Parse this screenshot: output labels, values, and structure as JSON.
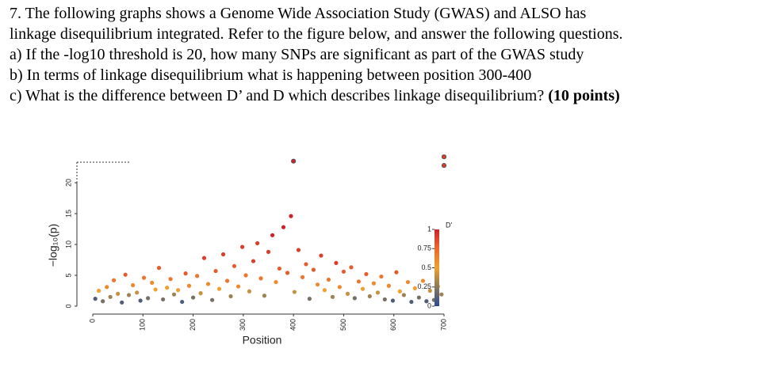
{
  "question": {
    "lines": [
      "7.  The following graphs shows a Genome Wide Association Study (GWAS) and ALSO has",
      "linkage disequilibrium integrated.  Refer to the figure below, and answer the following questions.",
      "a) If the -log10 threshold is 20, how many SNPs are significant as part of the GWAS study",
      "b) In terms of linkage disequilibrium what is happening between position 300-400",
      "c) What is the difference between D’ and D which describes linkage disequilibrium? "
    ],
    "points_label": "(10 points)"
  },
  "chart_data": {
    "type": "scatter",
    "x_label": "Position",
    "y_label": "−log₁₀(p)",
    "xlim": [
      0,
      700
    ],
    "ylim": [
      0,
      24.5
    ],
    "xticks": [
      0,
      100,
      200,
      300,
      400,
      500,
      600,
      700
    ],
    "yticks": [
      0,
      5,
      10,
      15,
      20
    ],
    "color_label": "D'",
    "color_ticks": [
      0,
      0.25,
      0.5,
      0.75,
      1
    ],
    "colorscale": [
      "#2a4a8e",
      "#8a7a5a",
      "#f0a030",
      "#ec6a2c",
      "#d0202a"
    ],
    "x": [
      5,
      12,
      20,
      28,
      35,
      42,
      50,
      58,
      65,
      72,
      80,
      88,
      95,
      102,
      110,
      118,
      125,
      132,
      140,
      148,
      155,
      162,
      170,
      178,
      185,
      192,
      200,
      208,
      215,
      222,
      230,
      238,
      245,
      252,
      260,
      268,
      275,
      282,
      290,
      298,
      305,
      312,
      320,
      328,
      335,
      342,
      350,
      358,
      365,
      372,
      380,
      388,
      395,
      402,
      410,
      418,
      425,
      432,
      440,
      448,
      455,
      462,
      470,
      478,
      485,
      492,
      500,
      508,
      515,
      522,
      530,
      538,
      545,
      552,
      560,
      568,
      575,
      582,
      590,
      598,
      605,
      612,
      620,
      628,
      635,
      642,
      650,
      658,
      665,
      672,
      680,
      688,
      695,
      400,
      700,
      700
    ],
    "y": [
      1.2,
      2.5,
      0.8,
      3.1,
      1.5,
      4.2,
      2.0,
      0.6,
      5.1,
      1.8,
      3.4,
      2.2,
      0.9,
      4.6,
      1.3,
      3.8,
      2.7,
      6.2,
      1.1,
      3.0,
      4.4,
      1.9,
      2.6,
      0.7,
      5.3,
      3.3,
      1.4,
      4.9,
      2.1,
      7.8,
      3.6,
      1.0,
      5.7,
      2.8,
      8.4,
      4.1,
      1.6,
      6.5,
      3.2,
      9.6,
      5.0,
      2.4,
      7.3,
      10.2,
      4.5,
      1.7,
      8.8,
      11.5,
      3.9,
      6.1,
      12.8,
      5.4,
      14.6,
      2.3,
      9.1,
      4.7,
      6.8,
      1.2,
      5.9,
      3.5,
      8.2,
      2.6,
      4.3,
      1.5,
      7.0,
      3.1,
      5.6,
      2.0,
      6.3,
      1.3,
      4.0,
      2.8,
      5.2,
      1.6,
      3.7,
      2.2,
      4.8,
      1.1,
      3.3,
      0.9,
      5.5,
      2.4,
      1.8,
      3.9,
      0.7,
      2.9,
      1.4,
      4.1,
      0.8,
      2.5,
      1.0,
      3.2,
      1.9,
      23.5,
      24.2,
      22.8
    ],
    "ld": [
      0.1,
      0.5,
      0.2,
      0.6,
      0.3,
      0.7,
      0.4,
      0.1,
      0.8,
      0.3,
      0.6,
      0.4,
      0.1,
      0.7,
      0.2,
      0.6,
      0.5,
      0.8,
      0.2,
      0.5,
      0.7,
      0.3,
      0.5,
      0.1,
      0.8,
      0.6,
      0.2,
      0.7,
      0.4,
      0.9,
      0.6,
      0.2,
      0.8,
      0.5,
      0.9,
      0.7,
      0.3,
      0.8,
      0.6,
      0.9,
      0.7,
      0.4,
      0.9,
      0.9,
      0.7,
      0.3,
      0.9,
      1.0,
      0.6,
      0.8,
      1.0,
      0.8,
      1.0,
      0.4,
      0.9,
      0.7,
      0.8,
      0.2,
      0.8,
      0.6,
      0.9,
      0.5,
      0.7,
      0.3,
      0.9,
      0.6,
      0.8,
      0.4,
      0.8,
      0.2,
      0.7,
      0.5,
      0.8,
      0.3,
      0.6,
      0.4,
      0.7,
      0.2,
      0.6,
      0.1,
      0.8,
      0.5,
      0.3,
      0.6,
      0.1,
      0.5,
      0.2,
      0.6,
      0.1,
      0.4,
      0.2,
      0.5,
      0.3,
      1.0,
      0.9,
      0.9
    ]
  }
}
